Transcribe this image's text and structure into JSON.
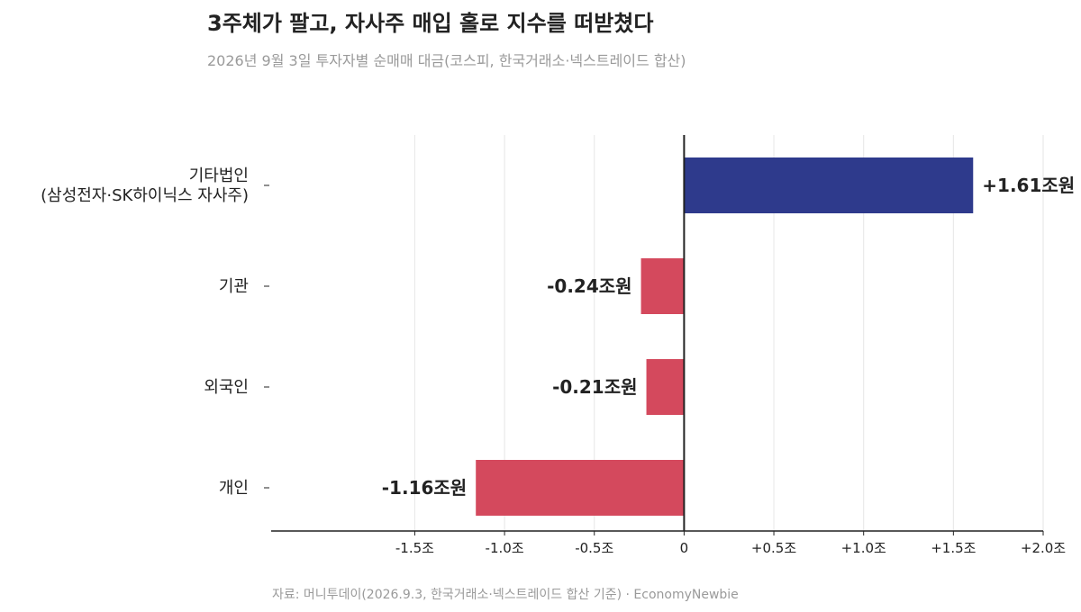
{
  "header": {
    "title": "3주체가 팔고, 자사주 매입 홀로 지수를 떠받쳤다",
    "subtitle": "2026년 9월 3일 투자자별 순매매 대금(코스피, 한국거래소·넥스트레이드 합산)"
  },
  "footer": {
    "source": "자료: 머니투데이(2026.9.3, 한국거래소·넥스트레이드 합산 기준) · EconomyNewbie"
  },
  "colors": {
    "positive": "#2e3a8c",
    "negative": "#d4495d",
    "grid": "#e6e6e6",
    "axis": "#222222"
  },
  "chart_data": {
    "type": "bar",
    "orientation": "horizontal",
    "categories": [
      [
        "기타법인",
        "(삼성전자·SK하이닉스 자사주)"
      ],
      [
        "기관"
      ],
      [
        "외국인"
      ],
      [
        "개인"
      ]
    ],
    "values": [
      1.61,
      -0.24,
      -0.21,
      -1.16
    ],
    "data_labels": [
      "+1.61조원",
      "-0.24조원",
      "-0.21조원",
      "-1.16조원"
    ],
    "xlim": [
      -2.3,
      2.0
    ],
    "xticks": [
      -1.5,
      -1.0,
      -0.5,
      0,
      0.5,
      1.0,
      1.5,
      2.0
    ],
    "xtick_labels": [
      "-1.5조",
      "-1.0조",
      "-0.5조",
      "0",
      "+0.5조",
      "+1.0조",
      "+1.5조",
      "+2.0조"
    ],
    "grid": true
  }
}
